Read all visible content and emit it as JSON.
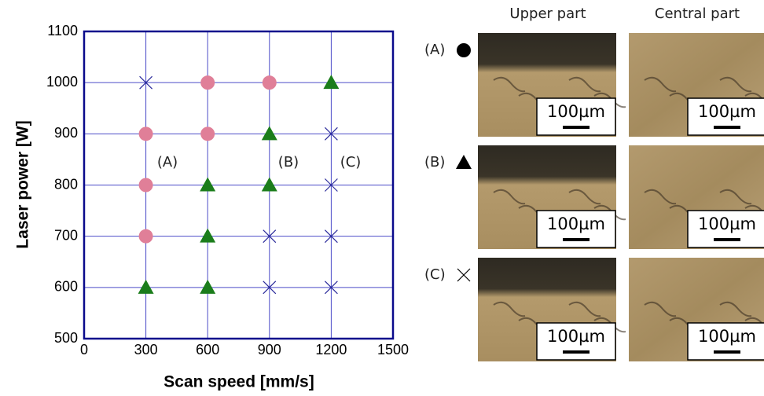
{
  "chart_data": {
    "type": "scatter",
    "xlabel": "Scan speed [mm/s]",
    "ylabel": "Laser power [W]",
    "xlim": [
      0,
      1500
    ],
    "ylim": [
      500,
      1100
    ],
    "xticks": [
      0,
      300,
      600,
      900,
      1200,
      1500
    ],
    "yticks": [
      500,
      600,
      700,
      800,
      900,
      1000,
      1100
    ],
    "grid": true,
    "annotations": [
      "(A)",
      "(B)",
      "(C)"
    ],
    "series": [
      {
        "marker": "circle",
        "color": "#e07f98",
        "x": [
          300,
          300,
          300,
          600,
          600,
          900
        ],
        "values": [
          900,
          800,
          700,
          1000,
          900,
          1000
        ]
      },
      {
        "marker": "triangle",
        "color": "#1b7d1b",
        "x": [
          300,
          600,
          600,
          600,
          900,
          900,
          1200
        ],
        "values": [
          600,
          800,
          700,
          600,
          900,
          800,
          1000
        ]
      },
      {
        "marker": "cross",
        "color": "#2a2a9a",
        "x": [
          300,
          900,
          900,
          1200,
          1200,
          1200,
          1200
        ],
        "values": [
          1000,
          700,
          600,
          900,
          800,
          700,
          600
        ]
      }
    ]
  },
  "micrographs": {
    "columns": [
      "Upper part",
      "Central part"
    ],
    "rows": [
      {
        "label": "(A)",
        "scale_bars": [
          "100µm",
          "100µm"
        ]
      },
      {
        "label": "(B)",
        "scale_bars": [
          "100µm",
          "100µm"
        ]
      },
      {
        "label": "(C)",
        "scale_bars": [
          "100µm",
          "100µm"
        ]
      }
    ]
  }
}
